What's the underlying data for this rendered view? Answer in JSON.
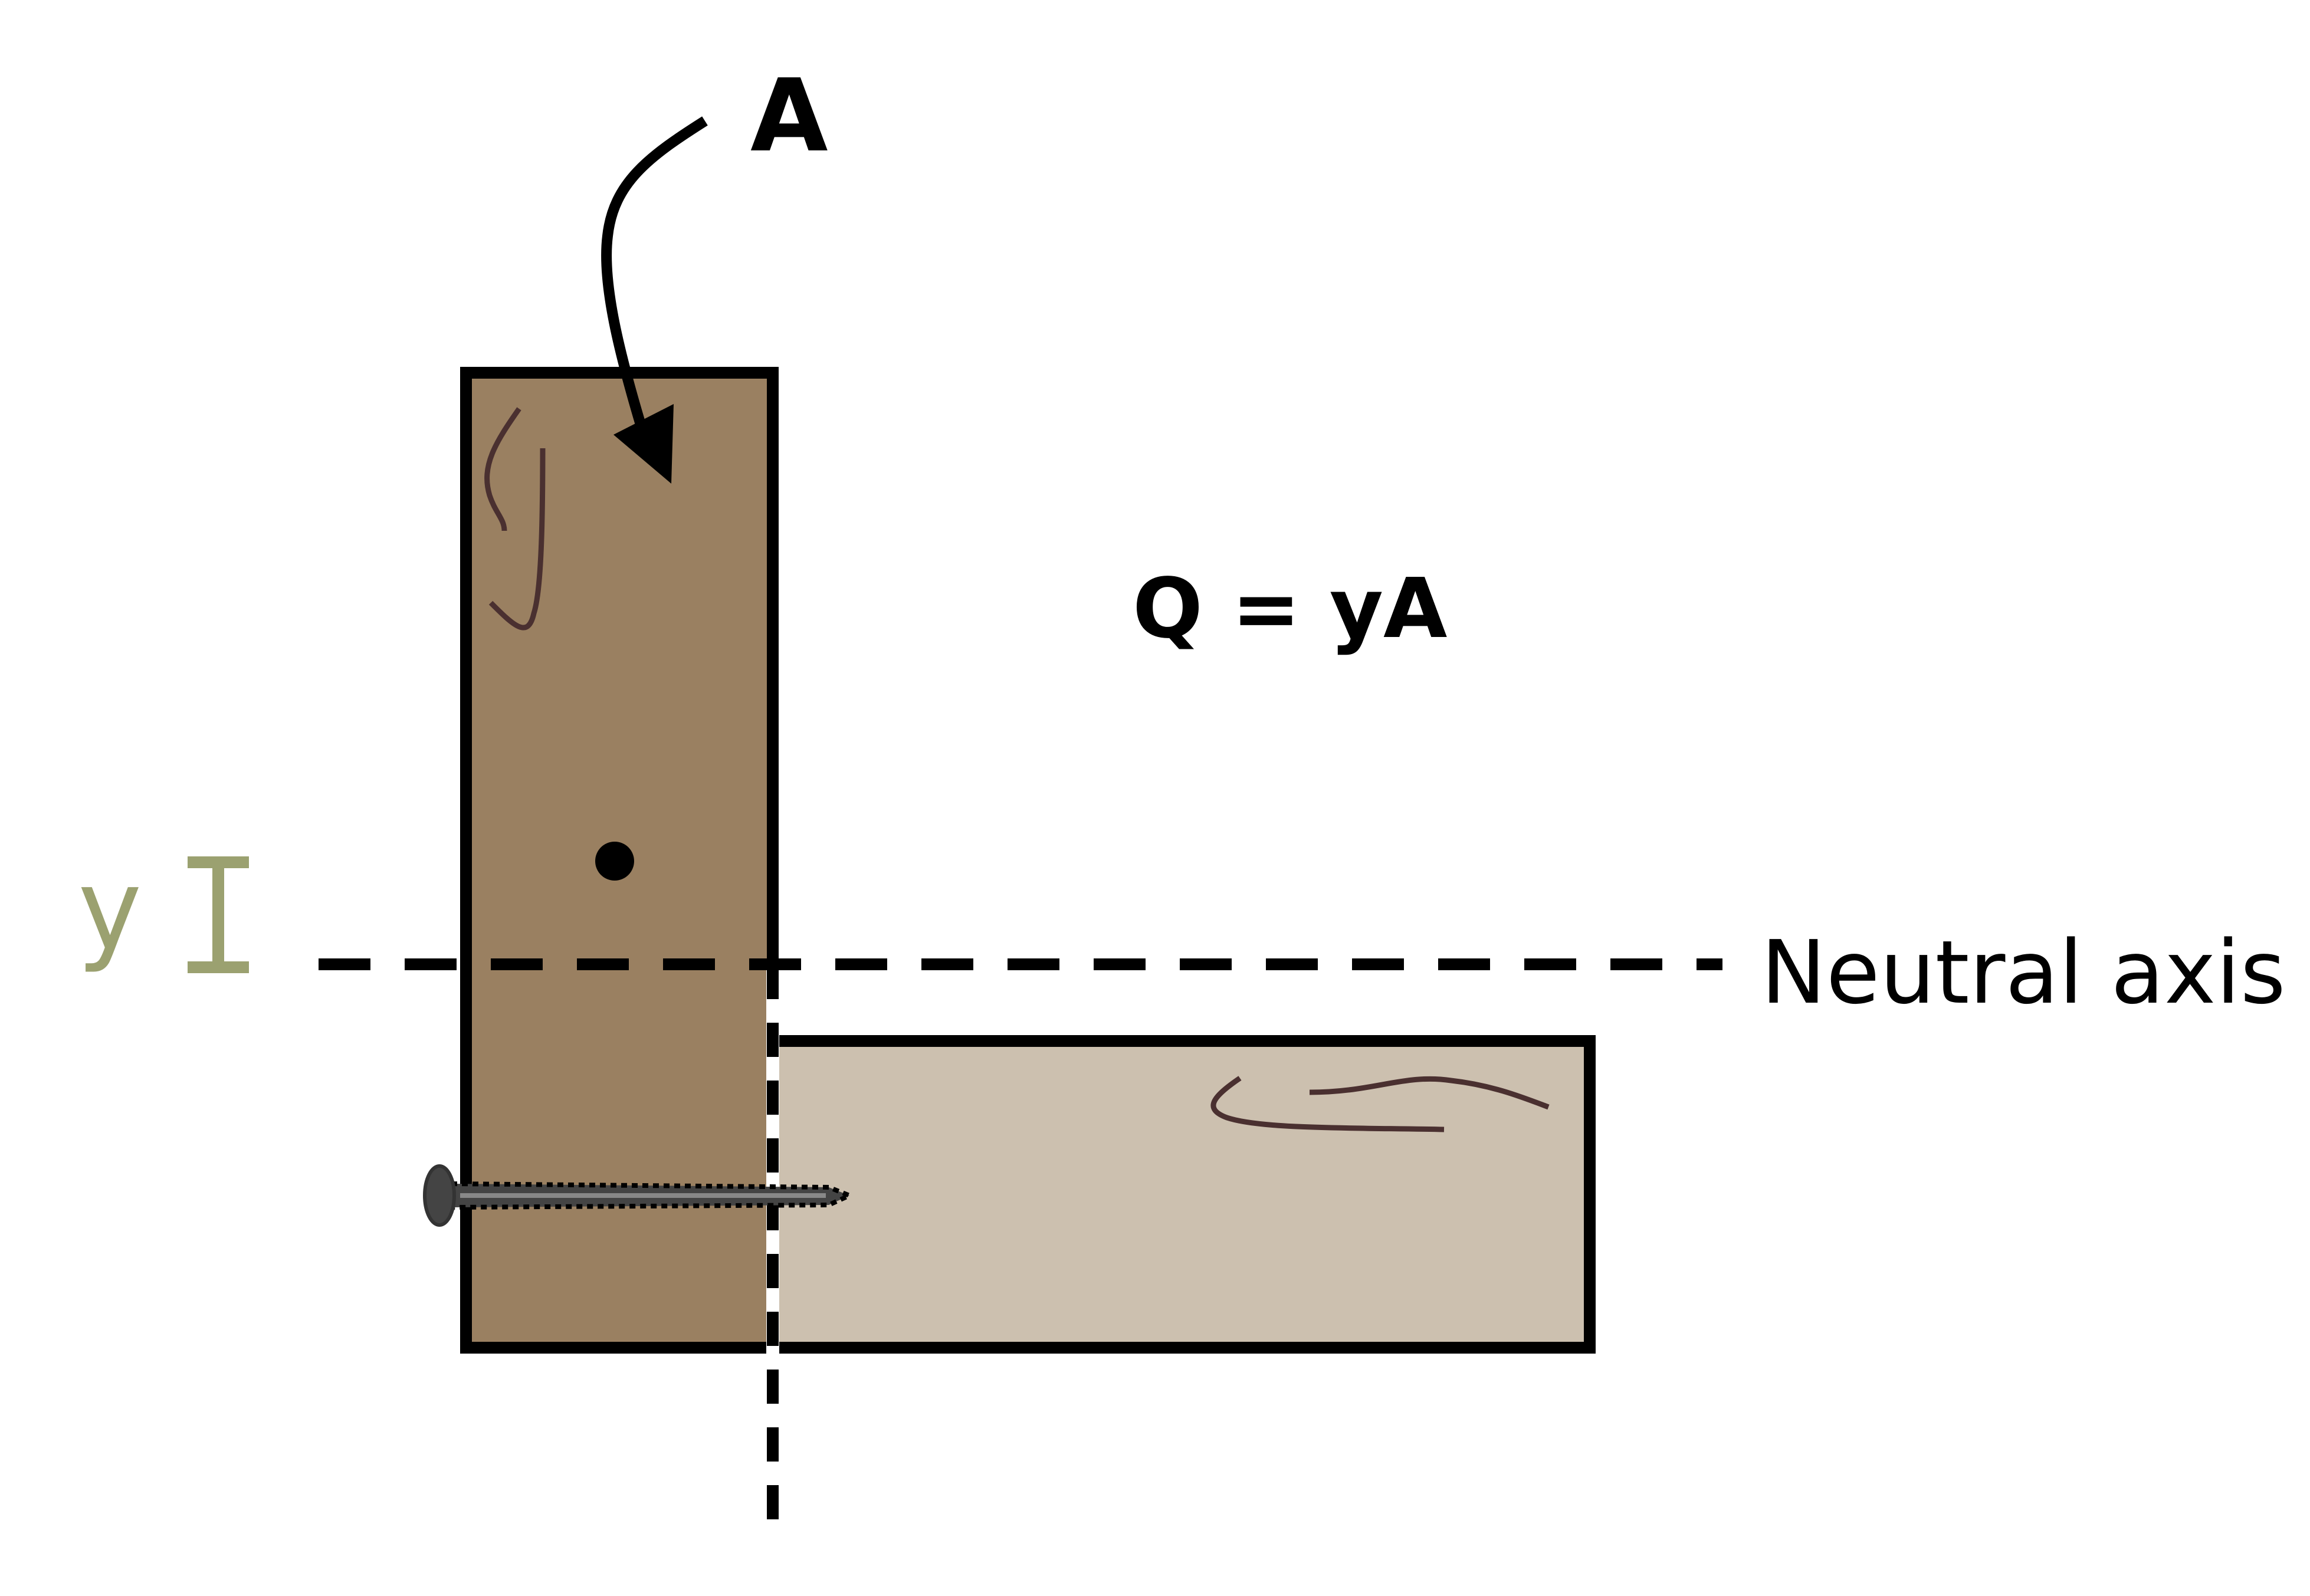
{
  "labels": {
    "area": "A",
    "formula": "Q = yA",
    "y_symbol": "y",
    "neutral_axis": "Neutral axis"
  },
  "colors": {
    "vertical_board": "#9A8061",
    "horizontal_board": "#CCC0AF",
    "outline": "#000000",
    "grain": "#4A3030",
    "y_dimension": "#9BA170",
    "screw": "#444444",
    "background": "#FFFFFF"
  },
  "icons": {
    "screw": "screw-icon",
    "centroid": "centroid-dot",
    "pointer": "curved-arrow"
  }
}
